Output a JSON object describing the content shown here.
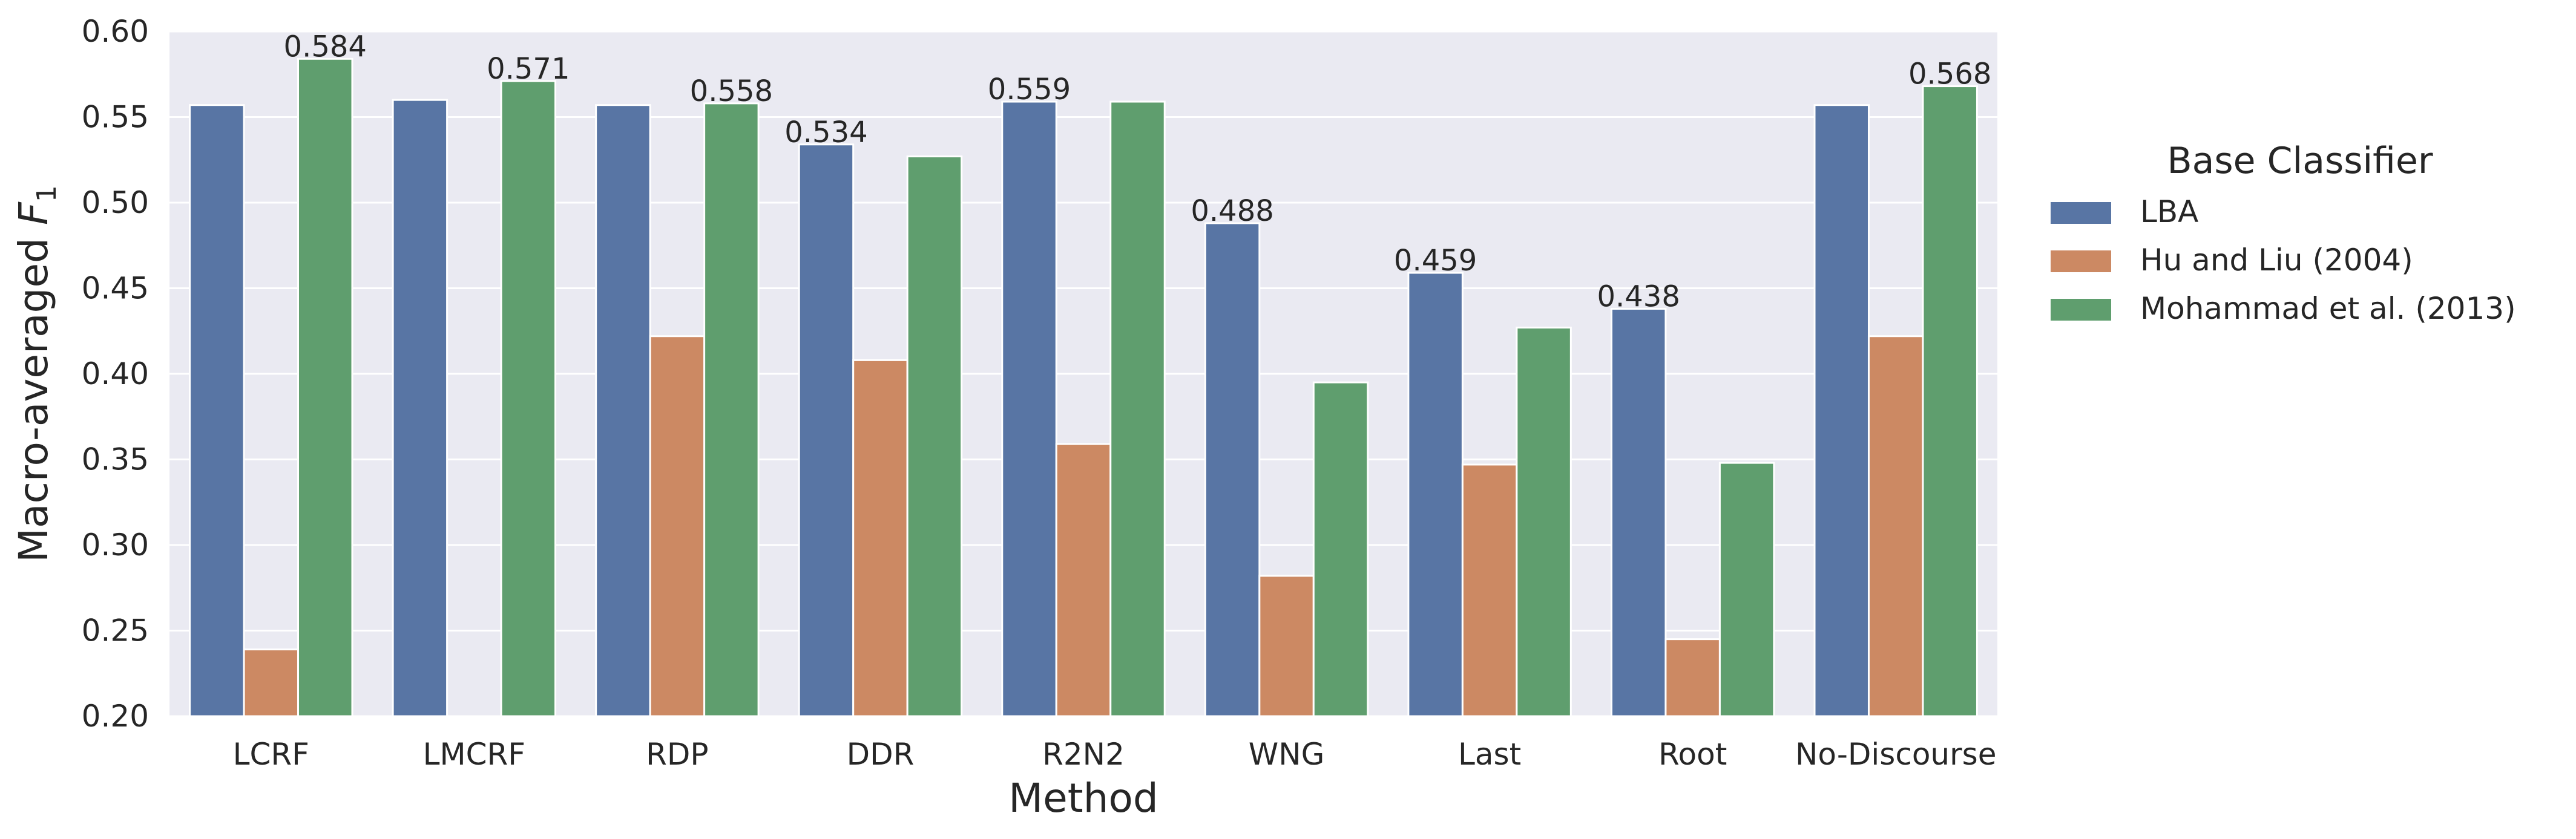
{
  "chart_data": {
    "type": "bar",
    "title": "",
    "xlabel": "Method",
    "ylabel_prefix": "Macro-averaged ",
    "ylabel_math": "F",
    "ylabel_sub": "1",
    "ylim": [
      0.2,
      0.6
    ],
    "yticks": [
      0.2,
      0.25,
      0.3,
      0.35,
      0.4,
      0.45,
      0.5,
      0.55,
      0.6
    ],
    "ytick_labels": [
      "0.20",
      "0.25",
      "0.30",
      "0.35",
      "0.40",
      "0.45",
      "0.50",
      "0.55",
      "0.60"
    ],
    "grid": true,
    "legend_position": "right, outside plot",
    "legend_title": "Base Classifier",
    "categories": [
      "LCRF",
      "LMCRF",
      "RDP",
      "DDR",
      "R2N2",
      "WNG",
      "Last",
      "Root",
      "No-Discourse"
    ],
    "series": [
      {
        "name": "LBA",
        "color": "#5875a4",
        "values": [
          0.557,
          0.56,
          0.557,
          0.534,
          0.559,
          0.488,
          0.459,
          0.438,
          0.557
        ]
      },
      {
        "name": "Hu and Liu (2004)",
        "color": "#cc8963",
        "values": [
          0.239,
          null,
          0.422,
          0.408,
          0.359,
          0.282,
          0.347,
          0.245,
          0.422
        ]
      },
      {
        "name": "Mohammad et al. (2013)",
        "color": "#5f9e6e",
        "values": [
          0.584,
          0.571,
          0.558,
          0.527,
          0.559,
          0.395,
          0.427,
          0.348,
          0.568
        ]
      }
    ],
    "annotations": [
      {
        "category": "LCRF",
        "series": "Mohammad et al. (2013)",
        "text": "0.584"
      },
      {
        "category": "LMCRF",
        "series": "Mohammad et al. (2013)",
        "text": "0.571"
      },
      {
        "category": "RDP",
        "series": "Mohammad et al. (2013)",
        "text": "0.558"
      },
      {
        "category": "DDR",
        "series": "LBA",
        "text": "0.534"
      },
      {
        "category": "R2N2",
        "series": "LBA",
        "text": "0.559"
      },
      {
        "category": "WNG",
        "series": "LBA",
        "text": "0.488"
      },
      {
        "category": "Last",
        "series": "LBA",
        "text": "0.459"
      },
      {
        "category": "Root",
        "series": "LBA",
        "text": "0.438"
      },
      {
        "category": "No-Discourse",
        "series": "Mohammad et al. (2013)",
        "text": "0.568"
      }
    ],
    "plot_background": "#eaeaf2",
    "grid_color": "#ffffff"
  }
}
